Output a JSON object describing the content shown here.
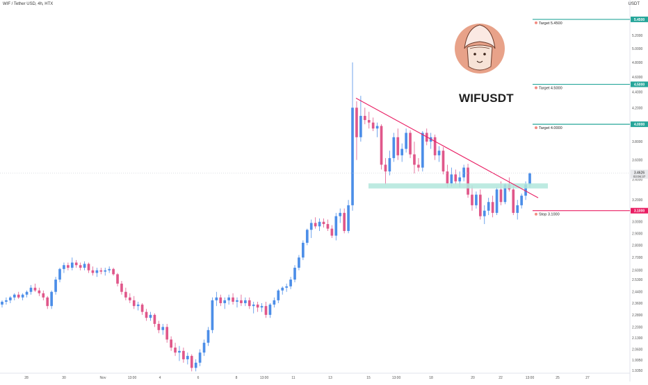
{
  "header": {
    "symbol_line": "WIF / Tether USD, 4h, HTX",
    "currency": "USDT"
  },
  "logo_title": "WIFUSDT",
  "chart_data": {
    "type": "candlestick",
    "ylim": [
      1.9,
      5.7
    ],
    "y_scale": "log",
    "price_ticks": [
      "5.2000",
      "5.0000",
      "4.8000",
      "4.6000",
      "4.4000",
      "4.2000",
      "3.8000",
      "3.6000",
      "3.4000",
      "3.2000",
      "3.1000",
      "3.0000",
      "2.9000",
      "2.8000",
      "2.7000",
      "2.6000",
      "2.5300",
      "2.4400",
      "2.3600",
      "2.2800",
      "2.2000",
      "2.1300",
      "2.0600",
      "1.9950",
      "1.9350"
    ],
    "time_ticks": [
      "28",
      "30",
      "Nov",
      "13:00",
      "4",
      "6",
      "8",
      "13:00",
      "11",
      "13",
      "15",
      "13:00",
      "18",
      "20",
      "22",
      "13:00",
      "25",
      "27"
    ],
    "current_price": {
      "value": "3.4626",
      "countdown": "03:06:37",
      "color": "#26a69a"
    },
    "levels": [
      {
        "label": "Target 5.4500",
        "value": 5.45,
        "tag": "5.4500",
        "color": "#26a69a"
      },
      {
        "label": "Target 4.5000",
        "value": 4.5,
        "tag": "4.5000",
        "color": "#26a69a"
      },
      {
        "label": "Target 4.0000",
        "value": 4.0,
        "tag": "4.0000",
        "color": "#26a69a"
      },
      {
        "label": "Stop 3.1000",
        "value": 3.1,
        "tag": "3.1000",
        "color": "#e91e63"
      }
    ],
    "support_zone": {
      "low": 3.31,
      "high": 3.36,
      "color": "#b2e6dc"
    },
    "trendline": {
      "color": "#e91e63",
      "start_price": 4.32,
      "end_price": 3.22
    },
    "candles": [
      [
        2.35,
        2.38,
        2.33,
        2.37
      ],
      [
        2.37,
        2.4,
        2.35,
        2.38
      ],
      [
        2.38,
        2.41,
        2.36,
        2.4
      ],
      [
        2.4,
        2.43,
        2.38,
        2.42
      ],
      [
        2.42,
        2.44,
        2.39,
        2.4
      ],
      [
        2.4,
        2.43,
        2.38,
        2.42
      ],
      [
        2.42,
        2.45,
        2.4,
        2.44
      ],
      [
        2.44,
        2.49,
        2.42,
        2.47
      ],
      [
        2.47,
        2.5,
        2.44,
        2.45
      ],
      [
        2.45,
        2.47,
        2.41,
        2.43
      ],
      [
        2.43,
        2.45,
        2.38,
        2.4
      ],
      [
        2.4,
        2.41,
        2.32,
        2.34
      ],
      [
        2.34,
        2.45,
        2.32,
        2.44
      ],
      [
        2.44,
        2.55,
        2.42,
        2.53
      ],
      [
        2.53,
        2.62,
        2.51,
        2.61
      ],
      [
        2.61,
        2.66,
        2.58,
        2.64
      ],
      [
        2.64,
        2.66,
        2.6,
        2.62
      ],
      [
        2.62,
        2.7,
        2.6,
        2.66
      ],
      [
        2.66,
        2.68,
        2.62,
        2.64
      ],
      [
        2.64,
        2.66,
        2.6,
        2.62
      ],
      [
        2.62,
        2.67,
        2.6,
        2.65
      ],
      [
        2.65,
        2.66,
        2.58,
        2.6
      ],
      [
        2.6,
        2.63,
        2.56,
        2.58
      ],
      [
        2.58,
        2.62,
        2.55,
        2.6
      ],
      [
        2.6,
        2.62,
        2.57,
        2.59
      ],
      [
        2.59,
        2.62,
        2.56,
        2.6
      ],
      [
        2.6,
        2.63,
        2.58,
        2.61
      ],
      [
        2.61,
        2.62,
        2.56,
        2.57
      ],
      [
        2.57,
        2.58,
        2.48,
        2.5
      ],
      [
        2.5,
        2.52,
        2.42,
        2.44
      ],
      [
        2.44,
        2.47,
        2.38,
        2.4
      ],
      [
        2.4,
        2.43,
        2.36,
        2.38
      ],
      [
        2.38,
        2.41,
        2.32,
        2.34
      ],
      [
        2.34,
        2.37,
        2.31,
        2.35
      ],
      [
        2.35,
        2.36,
        2.28,
        2.3
      ],
      [
        2.3,
        2.32,
        2.24,
        2.26
      ],
      [
        2.26,
        2.3,
        2.24,
        2.28
      ],
      [
        2.28,
        2.29,
        2.2,
        2.22
      ],
      [
        2.22,
        2.24,
        2.16,
        2.18
      ],
      [
        2.18,
        2.22,
        2.15,
        2.2
      ],
      [
        2.2,
        2.22,
        2.1,
        2.12
      ],
      [
        2.12,
        2.14,
        2.05,
        2.07
      ],
      [
        2.07,
        2.1,
        2.02,
        2.04
      ],
      [
        2.04,
        2.08,
        1.99,
        2.05
      ],
      [
        2.05,
        2.07,
        1.98,
        2.0
      ],
      [
        2.0,
        2.04,
        1.97,
        2.02
      ],
      [
        2.02,
        2.03,
        1.93,
        1.95
      ],
      [
        1.95,
        2.0,
        1.93,
        1.98
      ],
      [
        1.98,
        2.06,
        1.96,
        2.04
      ],
      [
        2.04,
        2.12,
        2.02,
        2.1
      ],
      [
        2.1,
        2.2,
        2.08,
        2.18
      ],
      [
        2.18,
        2.4,
        2.16,
        2.38
      ],
      [
        2.38,
        2.44,
        2.34,
        2.4
      ],
      [
        2.4,
        2.42,
        2.34,
        2.36
      ],
      [
        2.36,
        2.4,
        2.32,
        2.38
      ],
      [
        2.38,
        2.42,
        2.35,
        2.4
      ],
      [
        2.4,
        2.43,
        2.35,
        2.37
      ],
      [
        2.37,
        2.4,
        2.33,
        2.38
      ],
      [
        2.38,
        2.42,
        2.34,
        2.36
      ],
      [
        2.36,
        2.4,
        2.34,
        2.38
      ],
      [
        2.38,
        2.4,
        2.32,
        2.34
      ],
      [
        2.34,
        2.37,
        2.29,
        2.35
      ],
      [
        2.35,
        2.37,
        2.3,
        2.33
      ],
      [
        2.33,
        2.36,
        2.3,
        2.34
      ],
      [
        2.34,
        2.37,
        2.26,
        2.28
      ],
      [
        2.28,
        2.36,
        2.26,
        2.35
      ],
      [
        2.35,
        2.4,
        2.33,
        2.38
      ],
      [
        2.38,
        2.46,
        2.36,
        2.45
      ],
      [
        2.45,
        2.48,
        2.42,
        2.47
      ],
      [
        2.47,
        2.5,
        2.44,
        2.48
      ],
      [
        2.48,
        2.55,
        2.46,
        2.53
      ],
      [
        2.53,
        2.64,
        2.51,
        2.62
      ],
      [
        2.62,
        2.72,
        2.6,
        2.7
      ],
      [
        2.7,
        2.84,
        2.68,
        2.82
      ],
      [
        2.82,
        2.94,
        2.8,
        2.93
      ],
      [
        2.93,
        3.02,
        2.86,
        2.99
      ],
      [
        2.99,
        3.04,
        2.94,
        2.96
      ],
      [
        2.96,
        3.03,
        2.92,
        3.0
      ],
      [
        3.0,
        3.03,
        2.95,
        2.98
      ],
      [
        2.98,
        3.02,
        2.92,
        2.94
      ],
      [
        2.94,
        2.97,
        2.86,
        2.88
      ],
      [
        2.88,
        3.08,
        2.84,
        3.05
      ],
      [
        3.05,
        3.12,
        2.99,
        3.08
      ],
      [
        3.08,
        3.12,
        2.9,
        2.92
      ],
      [
        2.92,
        3.2,
        2.9,
        3.15
      ],
      [
        3.15,
        4.8,
        3.1,
        4.2
      ],
      [
        4.2,
        4.28,
        3.6,
        3.85
      ],
      [
        3.85,
        4.35,
        3.8,
        4.1
      ],
      [
        4.1,
        4.2,
        4.0,
        4.05
      ],
      [
        4.05,
        4.15,
        3.95,
        4.02
      ],
      [
        4.02,
        4.08,
        3.92,
        3.95
      ],
      [
        3.95,
        4.02,
        3.85,
        3.98
      ],
      [
        3.98,
        4.0,
        3.5,
        3.55
      ],
      [
        3.55,
        3.62,
        3.35,
        3.48
      ],
      [
        3.48,
        3.7,
        3.44,
        3.62
      ],
      [
        3.62,
        3.9,
        3.58,
        3.85
      ],
      [
        3.85,
        3.95,
        3.6,
        3.65
      ],
      [
        3.65,
        3.78,
        3.58,
        3.72
      ],
      [
        3.72,
        3.95,
        3.68,
        3.9
      ],
      [
        3.9,
        3.93,
        3.62,
        3.66
      ],
      [
        3.66,
        3.8,
        3.46,
        3.55
      ],
      [
        3.55,
        3.62,
        3.48,
        3.52
      ],
      [
        3.52,
        3.92,
        3.48,
        3.9
      ],
      [
        3.9,
        3.95,
        3.76,
        3.8
      ],
      [
        3.8,
        3.9,
        3.72,
        3.85
      ],
      [
        3.85,
        3.88,
        3.6,
        3.65
      ],
      [
        3.65,
        3.75,
        3.58,
        3.7
      ],
      [
        3.7,
        3.74,
        3.45,
        3.48
      ],
      [
        3.48,
        3.55,
        3.32,
        3.36
      ],
      [
        3.36,
        3.52,
        3.33,
        3.45
      ],
      [
        3.45,
        3.5,
        3.35,
        3.38
      ],
      [
        3.38,
        3.48,
        3.32,
        3.42
      ],
      [
        3.42,
        3.55,
        3.38,
        3.52
      ],
      [
        3.52,
        3.56,
        3.22,
        3.25
      ],
      [
        3.25,
        3.34,
        3.1,
        3.15
      ],
      [
        3.15,
        3.28,
        3.12,
        3.25
      ],
      [
        3.25,
        3.3,
        3.02,
        3.05
      ],
      [
        3.05,
        3.15,
        2.98,
        3.1
      ],
      [
        3.1,
        3.22,
        3.06,
        3.18
      ],
      [
        3.18,
        3.24,
        3.04,
        3.08
      ],
      [
        3.08,
        3.32,
        3.06,
        3.3
      ],
      [
        3.3,
        3.38,
        3.15,
        3.18
      ],
      [
        3.18,
        3.36,
        3.16,
        3.35
      ],
      [
        3.35,
        3.42,
        3.28,
        3.3
      ],
      [
        3.3,
        3.34,
        3.06,
        3.08
      ],
      [
        3.08,
        3.2,
        3.02,
        3.15
      ],
      [
        3.15,
        3.26,
        3.12,
        3.24
      ],
      [
        3.24,
        3.38,
        3.2,
        3.35
      ],
      [
        3.35,
        3.47,
        3.32,
        3.46
      ]
    ]
  }
}
